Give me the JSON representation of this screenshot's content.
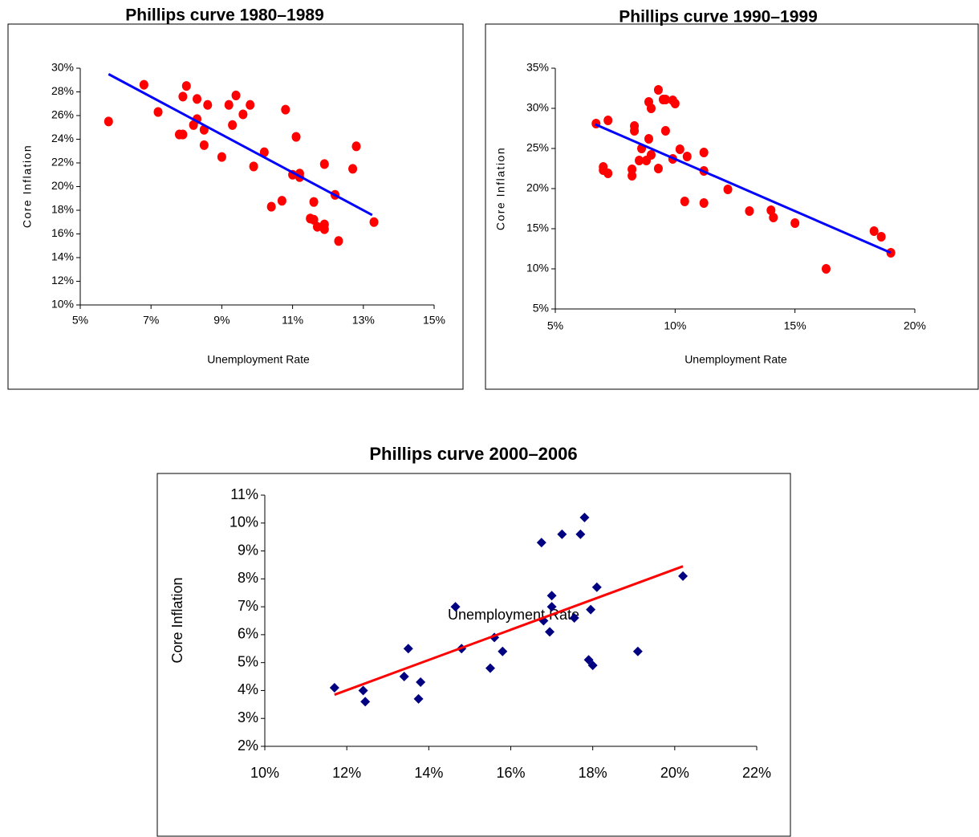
{
  "chart_data": [
    {
      "type": "scatter",
      "title": "Phillips curve 1980–1989",
      "x_label": "Unemployment Rate",
      "y_label": "Core Inflation",
      "marker": "circle",
      "xlim": [
        5,
        15
      ],
      "xticks": [
        {
          "value": 5,
          "label": "5%"
        },
        {
          "value": 7,
          "label": "7%"
        },
        {
          "value": 9,
          "label": "9%"
        },
        {
          "value": 11,
          "label": "11%"
        },
        {
          "value": 13,
          "label": "13%"
        },
        {
          "value": 15,
          "label": "15%"
        }
      ],
      "ylim": [
        10,
        30
      ],
      "yticks": [
        {
          "value": 10,
          "label": "10%"
        },
        {
          "value": 12,
          "label": "12%"
        },
        {
          "value": 14,
          "label": "14%"
        },
        {
          "value": 16,
          "label": "16%"
        },
        {
          "value": 18,
          "label": "18%"
        },
        {
          "value": 20,
          "label": "20%"
        },
        {
          "value": 22,
          "label": "22%"
        },
        {
          "value": 24,
          "label": "24%"
        },
        {
          "value": 26,
          "label": "26%"
        },
        {
          "value": 28,
          "label": "28%"
        },
        {
          "value": 30,
          "label": "30%"
        }
      ],
      "series": [
        {
          "color": "#ff0000",
          "x": [
            5.8,
            6.8,
            7.2,
            7.8,
            7.9,
            7.9,
            8.0,
            8.2,
            8.3,
            8.3,
            8.5,
            8.5,
            8.6,
            9.0,
            9.2,
            9.3,
            9.4,
            9.6,
            9.8,
            9.9,
            10.2,
            10.4,
            10.7,
            10.8,
            11.0,
            11.1,
            11.2,
            11.2,
            11.5,
            11.6,
            11.6,
            11.7,
            11.9,
            11.9,
            11.9,
            12.2,
            12.3,
            12.7,
            12.8,
            13.3
          ],
          "values": [
            25.5,
            28.6,
            26.3,
            24.4,
            24.4,
            27.6,
            28.5,
            25.2,
            25.7,
            27.4,
            24.8,
            23.5,
            26.9,
            22.5,
            26.9,
            25.2,
            27.7,
            26.1,
            26.9,
            21.7,
            22.9,
            18.3,
            18.8,
            26.5,
            21.0,
            24.2,
            21.1,
            20.8,
            17.3,
            17.2,
            18.7,
            16.6,
            16.8,
            16.4,
            21.9,
            19.3,
            15.4,
            21.5,
            23.4,
            17.0
          ]
        }
      ],
      "trendline": {
        "color": "#0000ff",
        "x": [
          5.8,
          13.25
        ],
        "values": [
          29.5,
          17.6
        ]
      }
    },
    {
      "type": "scatter",
      "title": "Phillips curve 1990–1999",
      "x_label": "Unemployment Rate",
      "y_label": "Core Inflation",
      "marker": "circle",
      "xlim": [
        5,
        20
      ],
      "xticks": [
        {
          "value": 5,
          "label": "5%"
        },
        {
          "value": 10,
          "label": "10%"
        },
        {
          "value": 15,
          "label": "15%"
        },
        {
          "value": 20,
          "label": "20%"
        }
      ],
      "ylim": [
        5,
        35
      ],
      "yticks": [
        {
          "value": 5,
          "label": "5%"
        },
        {
          "value": 10,
          "label": "10%"
        },
        {
          "value": 15,
          "label": "15%"
        },
        {
          "value": 20,
          "label": "20%"
        },
        {
          "value": 25,
          "label": "25%"
        },
        {
          "value": 30,
          "label": "30%"
        },
        {
          "value": 35,
          "label": "35%"
        }
      ],
      "series": [
        {
          "color": "#ff0000",
          "x": [
            6.7,
            7.0,
            7.0,
            7.2,
            7.2,
            8.2,
            8.2,
            8.3,
            8.3,
            8.5,
            8.6,
            8.8,
            8.9,
            8.9,
            9.0,
            9.0,
            9.3,
            9.3,
            9.5,
            9.6,
            9.6,
            9.9,
            9.9,
            10.0,
            10.2,
            10.4,
            10.5,
            11.2,
            11.2,
            11.2,
            12.2,
            13.1,
            14.0,
            14.1,
            15.0,
            16.3,
            18.3,
            18.6,
            19.0
          ],
          "values": [
            28.1,
            22.7,
            22.3,
            28.5,
            21.9,
            21.6,
            22.4,
            27.2,
            27.8,
            23.5,
            25.0,
            23.5,
            26.2,
            30.8,
            30.0,
            24.2,
            22.5,
            32.3,
            31.1,
            31.1,
            27.2,
            31.0,
            23.7,
            30.6,
            24.9,
            18.4,
            24.0,
            24.5,
            22.2,
            18.2,
            19.9,
            17.2,
            17.3,
            16.4,
            15.7,
            10.0,
            14.7,
            14.0,
            12.0
          ]
        }
      ],
      "trendline": {
        "color": "#0000ff",
        "x": [
          6.67,
          19.0
        ],
        "values": [
          28.0,
          12.0
        ]
      }
    },
    {
      "type": "scatter",
      "title": "Phillips curve 2000–2006",
      "x_label": "Unemployment Rate",
      "y_label": "Core Inflation",
      "marker": "diamond",
      "xlim": [
        10,
        22
      ],
      "xticks": [
        {
          "value": 10,
          "label": "10%"
        },
        {
          "value": 12,
          "label": "12%"
        },
        {
          "value": 14,
          "label": "14%"
        },
        {
          "value": 16,
          "label": "16%"
        },
        {
          "value": 18,
          "label": "18%"
        },
        {
          "value": 20,
          "label": "20%"
        },
        {
          "value": 22,
          "label": "22%"
        }
      ],
      "ylim": [
        2,
        11
      ],
      "yticks": [
        {
          "value": 2,
          "label": "2%"
        },
        {
          "value": 3,
          "label": "3%"
        },
        {
          "value": 4,
          "label": "4%"
        },
        {
          "value": 5,
          "label": "5%"
        },
        {
          "value": 6,
          "label": "6%"
        },
        {
          "value": 7,
          "label": "7%"
        },
        {
          "value": 8,
          "label": "8%"
        },
        {
          "value": 9,
          "label": "9%"
        },
        {
          "value": 10,
          "label": "10%"
        },
        {
          "value": 11,
          "label": "11%"
        }
      ],
      "series": [
        {
          "color": "#000080",
          "x": [
            11.7,
            12.4,
            12.45,
            13.4,
            13.5,
            13.75,
            13.8,
            14.65,
            14.8,
            15.5,
            15.6,
            15.8,
            16.75,
            16.8,
            16.95,
            17.0,
            17.0,
            17.25,
            17.55,
            17.7,
            17.8,
            17.9,
            18.0,
            17.95,
            18.1,
            19.1,
            20.2
          ],
          "values": [
            4.1,
            4.0,
            3.6,
            4.5,
            5.5,
            3.7,
            4.3,
            7.0,
            5.5,
            4.8,
            5.9,
            5.4,
            9.3,
            6.5,
            6.1,
            7.4,
            7.0,
            9.6,
            6.6,
            9.6,
            10.2,
            5.1,
            4.9,
            6.9,
            7.7,
            5.4,
            8.1
          ]
        }
      ],
      "trendline": {
        "color": "#ff0000",
        "x": [
          11.7,
          20.2
        ],
        "values": [
          3.85,
          8.45
        ]
      }
    }
  ]
}
